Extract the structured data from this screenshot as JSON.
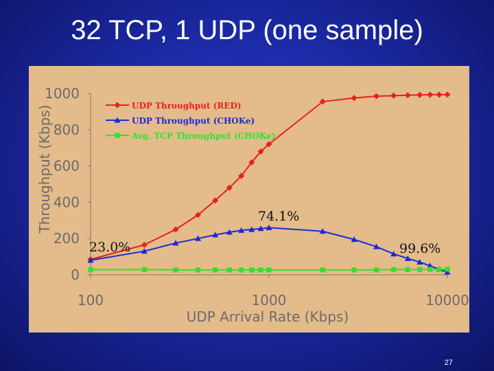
{
  "slide": {
    "title": "32 TCP, 1 UDP (one sample)",
    "number": "27"
  },
  "chart_data": {
    "type": "line",
    "title": "",
    "xlabel": "UDP Arrival Rate (Kbps)",
    "ylabel": "Throughput (Kbps)",
    "xscale": "log",
    "xlim": [
      100,
      10000
    ],
    "ylim": [
      0,
      1000
    ],
    "x_ticks": [
      "100",
      "1000",
      "10000"
    ],
    "y_ticks": [
      "0",
      "200",
      "400",
      "600",
      "800",
      "1000"
    ],
    "grid": false,
    "legend_position": "top-left",
    "series": [
      {
        "name": "UDP Throughput (RED)",
        "color": "#e8211a",
        "marker": "diamond",
        "x": [
          100,
          200,
          300,
          400,
          500,
          600,
          700,
          800,
          900,
          1000,
          2000,
          3000,
          4000,
          5000,
          6000,
          7000,
          8000,
          9000,
          10000
        ],
        "y": [
          85,
          165,
          250,
          330,
          410,
          480,
          545,
          620,
          680,
          720,
          955,
          975,
          985,
          988,
          990,
          992,
          993,
          993,
          994
        ]
      },
      {
        "name": "UDP Throughput (CHOKe)",
        "color": "#1a2ad8",
        "marker": "triangle",
        "x": [
          100,
          200,
          300,
          400,
          500,
          600,
          700,
          800,
          900,
          1000,
          2000,
          3000,
          4000,
          5000,
          6000,
          7000,
          8000,
          9000,
          10000
        ],
        "y": [
          80,
          130,
          175,
          200,
          220,
          235,
          245,
          250,
          255,
          260,
          240,
          195,
          155,
          115,
          90,
          70,
          50,
          30,
          15
        ]
      },
      {
        "name": "Avg. TCP Throughput (CHOKe)",
        "color": "#2de32d",
        "marker": "square",
        "x": [
          100,
          200,
          300,
          400,
          500,
          600,
          700,
          800,
          900,
          1000,
          2000,
          3000,
          4000,
          5000,
          6000,
          7000,
          8000,
          9000,
          10000
        ],
        "y": [
          28,
          29,
          27,
          27,
          27,
          27,
          27,
          27,
          27,
          27,
          27,
          27,
          27,
          29,
          29,
          29,
          30,
          30,
          31
        ]
      }
    ],
    "annotations": [
      "23.0%",
      "74.1%",
      "99.6%"
    ]
  }
}
